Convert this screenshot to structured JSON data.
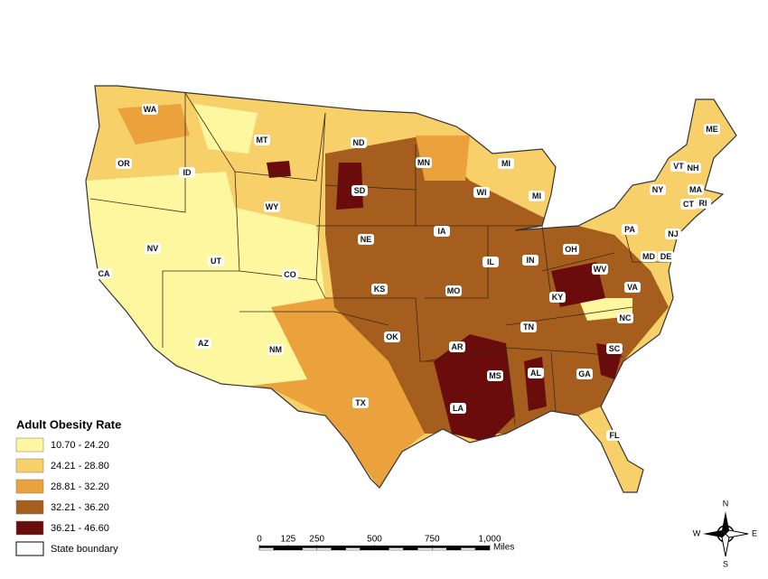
{
  "map": {
    "legend": {
      "title": "Adult Obesity Rate",
      "items": [
        {
          "label": "10.70 - 24.20",
          "color": "#fdf7a0"
        },
        {
          "label": "24.21 - 28.80",
          "color": "#f8d06a"
        },
        {
          "label": "28.81 - 32.20",
          "color": "#eba23c"
        },
        {
          "label": "32.21 - 36.20",
          "color": "#a65e1e"
        },
        {
          "label": "36.21 - 46.60",
          "color": "#6a0c0c"
        }
      ],
      "boundary": "State boundary"
    },
    "states": [
      "WA",
      "OR",
      "ID",
      "MT",
      "WY",
      "ND",
      "SD",
      "NE",
      "MN",
      "WI",
      "MI",
      "MI",
      "IA",
      "IL",
      "IN",
      "OH",
      "PA",
      "NY",
      "VT",
      "NH",
      "ME",
      "MA",
      "CT",
      "RI",
      "NJ",
      "MD",
      "DE",
      "WV",
      "VA",
      "KY",
      "TN",
      "NC",
      "SC",
      "GA",
      "AL",
      "MS",
      "LA",
      "AR",
      "MO",
      "KS",
      "OK",
      "TX",
      "NM",
      "AZ",
      "UT",
      "CO",
      "NV",
      "CA",
      "FL"
    ],
    "scale": {
      "ticks": [
        0,
        125,
        250,
        500,
        750,
        {
          "value": 1000,
          "label": "1,000"
        }
      ],
      "unit": "Miles"
    },
    "compass": {
      "n": "N",
      "s": "S",
      "e": "E",
      "w": "W"
    }
  }
}
